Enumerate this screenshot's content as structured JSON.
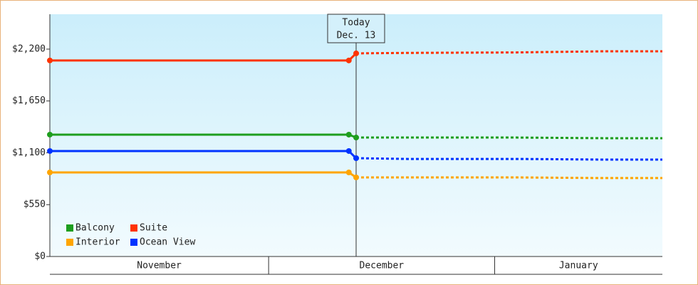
{
  "chart_data": {
    "type": "line",
    "x": [
      0,
      41,
      42,
      49,
      64,
      76,
      84
    ],
    "xlim": [
      0,
      84
    ],
    "xticks": [
      {
        "value": 0,
        "label": "November"
      },
      {
        "value": 30,
        "label": "December"
      },
      {
        "value": 61,
        "label": "January"
      }
    ],
    "ylim": [
      0,
      2570
    ],
    "yticks": [
      {
        "value": 0,
        "label": "$0"
      },
      {
        "value": 550,
        "label": "$550"
      },
      {
        "value": 1100,
        "label": "$1,100"
      },
      {
        "value": 1650,
        "label": "$1,650"
      },
      {
        "value": 2200,
        "label": "$2,200"
      }
    ],
    "annotation": {
      "x": 42,
      "lines": [
        "Today",
        "Dec. 13"
      ]
    },
    "legend": "bottom-left",
    "series": [
      {
        "name": "Balcony",
        "color": "#1e9e1e",
        "values": [
          1293,
          1293,
          1262,
          1262,
          1262,
          1255,
          1255
        ]
      },
      {
        "name": "Suite",
        "color": "#ff3300",
        "values": [
          2080,
          2080,
          2155,
          2160,
          2165,
          2177,
          2177
        ]
      },
      {
        "name": "Interior",
        "color": "#ffa500",
        "values": [
          892,
          892,
          839,
          839,
          839,
          832,
          832
        ]
      },
      {
        "name": "Ocean View",
        "color": "#0033ff",
        "values": [
          1119,
          1119,
          1043,
          1035,
          1035,
          1028,
          1028
        ]
      }
    ]
  }
}
